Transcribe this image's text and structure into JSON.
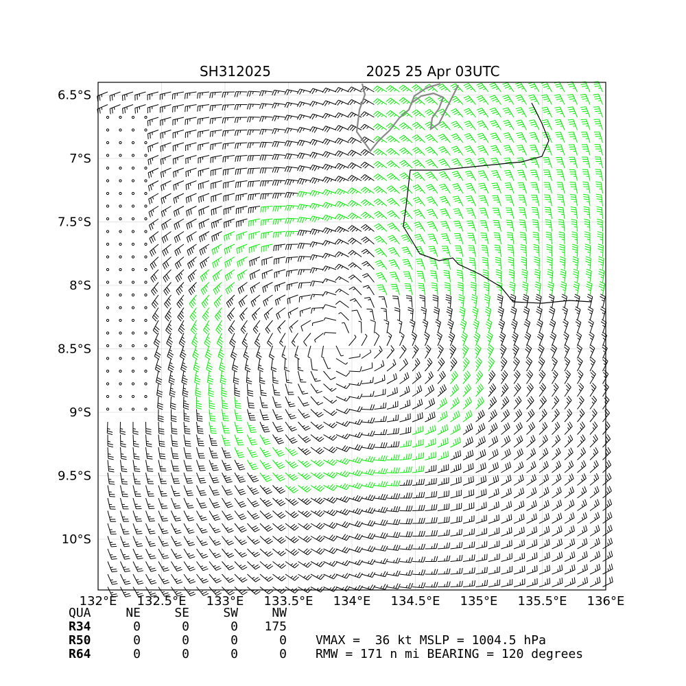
{
  "header": {
    "storm_id": "SH312025",
    "datetime": "2025 25 Apr 03UTC"
  },
  "map": {
    "lon_range": [
      132.0,
      136.0
    ],
    "lat_range": [
      -10.4,
      -6.4
    ],
    "lon_ticks": [
      {
        "value": 132.0,
        "label": "132°E"
      },
      {
        "value": 132.5,
        "label": "132.5°E"
      },
      {
        "value": 133.0,
        "label": "133°E"
      },
      {
        "value": 133.5,
        "label": "133.5°E"
      },
      {
        "value": 134.0,
        "label": "134°E"
      },
      {
        "value": 134.5,
        "label": "134.5°E"
      },
      {
        "value": 135.0,
        "label": "135°E"
      },
      {
        "value": 135.5,
        "label": "135.5°E"
      },
      {
        "value": 136.0,
        "label": "136°E"
      }
    ],
    "lat_ticks": [
      {
        "value": -6.5,
        "label": "6.5°S"
      },
      {
        "value": -7.0,
        "label": "7°S"
      },
      {
        "value": -7.5,
        "label": "7.5°S"
      },
      {
        "value": -8.0,
        "label": "8°S"
      },
      {
        "value": -8.5,
        "label": "8.5°S"
      },
      {
        "value": -9.0,
        "label": "9°S"
      },
      {
        "value": -9.5,
        "label": "9.5°S"
      },
      {
        "value": -10.0,
        "label": "10°S"
      }
    ],
    "grid": true,
    "colors": {
      "barb_normal": "#000000",
      "barb_gale": "#00ee00",
      "coastline": "#888888",
      "grid": "#dddddd"
    },
    "storm_center": {
      "lon": 133.9,
      "lat": -8.45
    },
    "rmw_nmi": 171,
    "vmax_kt": 36,
    "gale_threshold_kt": 34
  },
  "radii_table": {
    "header": [
      "QUA",
      "NE",
      "SE",
      "SW",
      "NW"
    ],
    "rows": [
      {
        "label": "R34",
        "values": [
          "0",
          "0",
          "0",
          "175"
        ]
      },
      {
        "label": "R50",
        "values": [
          "0",
          "0",
          "0",
          "0"
        ]
      },
      {
        "label": "R64",
        "values": [
          "0",
          "0",
          "0",
          "0"
        ]
      }
    ]
  },
  "summary": {
    "line1": "VMAX =  36 kt MSLP = 1004.5 hPa",
    "line2": "RMW = 171 n mi BEARING = 120 degrees"
  }
}
